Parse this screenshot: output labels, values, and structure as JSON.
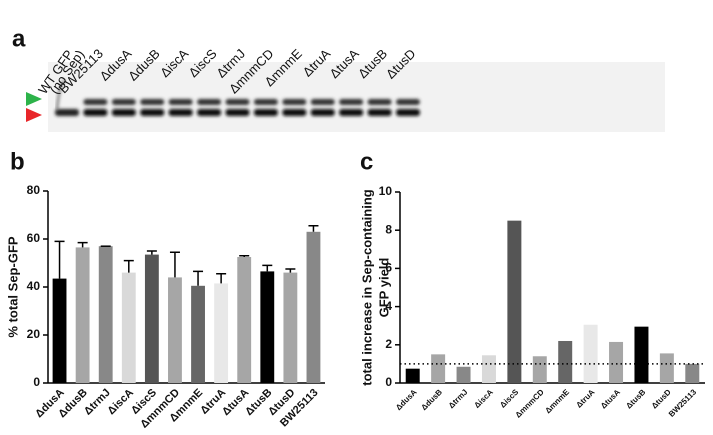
{
  "panel_labels": [
    "a",
    "b",
    "c"
  ],
  "gel": {
    "control_lane": [
      "WT GFP",
      "(no Sep)"
    ],
    "lanes": [
      "BW25113",
      "ΔdusA",
      "ΔdusB",
      "ΔiscA",
      "ΔiscS",
      "ΔtrmJ",
      "ΔmnmCD",
      "ΔmnmE",
      "ΔtruA",
      "ΔtusA",
      "ΔtusB",
      "ΔtusD"
    ],
    "arrow_colors": [
      "#2db34a",
      "#e8262a"
    ]
  },
  "chart_data": [
    {
      "type": "bar",
      "ylabel": [
        "% total Sep-GFP"
      ],
      "categories": [
        "ΔdusA",
        "ΔdusB",
        "ΔtrmJ",
        "ΔiscA",
        "ΔiscS",
        "ΔmnmCD",
        "ΔmnmE",
        "ΔtruA",
        "ΔtusA",
        "ΔtusB",
        "ΔtusD",
        "BW25113"
      ],
      "values": [
        43.5,
        56.5,
        57,
        46,
        53.5,
        44,
        40.5,
        41.5,
        52.5,
        46.5,
        46,
        63
      ],
      "errors": [
        15.5,
        2,
        0,
        5,
        1.5,
        10.5,
        6,
        4,
        0.5,
        2.5,
        1.5,
        2.5
      ],
      "colors": [
        "#000000",
        "#a6a6a6",
        "#888888",
        "#d9d9d9",
        "#555555",
        "#a6a6a6",
        "#666666",
        "#e8e8e8",
        "#a6a6a6",
        "#000000",
        "#a6a6a6",
        "#888888"
      ],
      "ylim": [
        0,
        80
      ],
      "yticks": [
        0,
        20,
        40,
        60,
        80
      ]
    },
    {
      "type": "bar",
      "ylabel": [
        "total increase in Sep-containing",
        "GFP yield"
      ],
      "categories": [
        "ΔdusA",
        "ΔdusB",
        "ΔtrmJ",
        "ΔiscA",
        "ΔiscS",
        "ΔmnmCD",
        "ΔmnmE",
        "ΔtruA",
        "ΔtusA",
        "ΔtusB",
        "ΔtusD",
        "BW25113"
      ],
      "values": [
        0.75,
        1.5,
        0.85,
        1.45,
        8.5,
        1.4,
        2.2,
        3.05,
        2.15,
        2.95,
        1.55,
        1.0
      ],
      "colors": [
        "#000000",
        "#a6a6a6",
        "#888888",
        "#d9d9d9",
        "#555555",
        "#a6a6a6",
        "#666666",
        "#e8e8e8",
        "#a6a6a6",
        "#000000",
        "#a6a6a6",
        "#888888"
      ],
      "reference_line": 1,
      "ylim": [
        0,
        10
      ],
      "yticks": [
        0,
        2,
        4,
        6,
        8,
        10
      ]
    }
  ]
}
